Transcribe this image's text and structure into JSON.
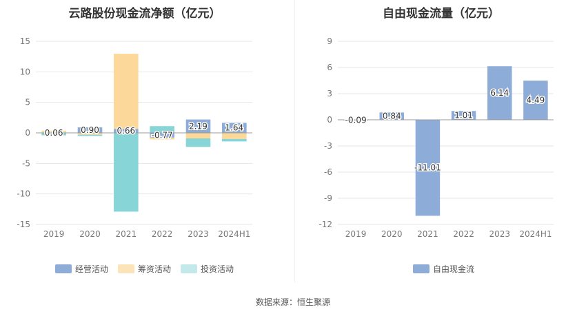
{
  "source": "数据来源：恒生聚源",
  "chart_data": [
    {
      "type": "bar",
      "stacked": true,
      "title": "云路股份现金流净额（亿元）",
      "categories": [
        "2019",
        "2020",
        "2021",
        "2022",
        "2023",
        "2024H1"
      ],
      "ylim": [
        -15,
        15
      ],
      "yticks": [
        -15,
        -10,
        -5,
        0,
        5,
        10,
        15
      ],
      "legend_position": "bottom",
      "series": [
        {
          "name": "经营活动",
          "color": "#8eacd8",
          "values": [
            0.06,
            0.9,
            0.66,
            -0.77,
            2.19,
            1.64
          ],
          "labels": [
            "0.06",
            "0.90",
            "0.66",
            "-0.77",
            "2.19",
            "1.64"
          ]
        },
        {
          "name": "筹资活动",
          "color": "#fcd89a",
          "values": [
            0.3,
            -0.3,
            12.3,
            -0.3,
            -0.9,
            -1.0
          ]
        },
        {
          "name": "投资活动",
          "color": "#87d5d7",
          "values": [
            -0.4,
            -0.2,
            -12.9,
            1.1,
            -1.4,
            -0.4
          ]
        }
      ]
    },
    {
      "type": "bar",
      "title": "自由现金流量（亿元）",
      "categories": [
        "2019",
        "2020",
        "2021",
        "2022",
        "2023",
        "2024H1"
      ],
      "ylim": [
        -12,
        9
      ],
      "yticks": [
        -12,
        -9,
        -6,
        -3,
        0,
        3,
        6,
        9
      ],
      "legend_position": "bottom",
      "series": [
        {
          "name": "自由现金流",
          "color": "#8eacd8",
          "values": [
            -0.09,
            0.84,
            -11.01,
            1.01,
            6.14,
            4.49
          ],
          "labels": [
            "-0.09",
            "0.84",
            "-11.01",
            "1.01",
            "6.14",
            "4.49"
          ]
        }
      ]
    }
  ]
}
